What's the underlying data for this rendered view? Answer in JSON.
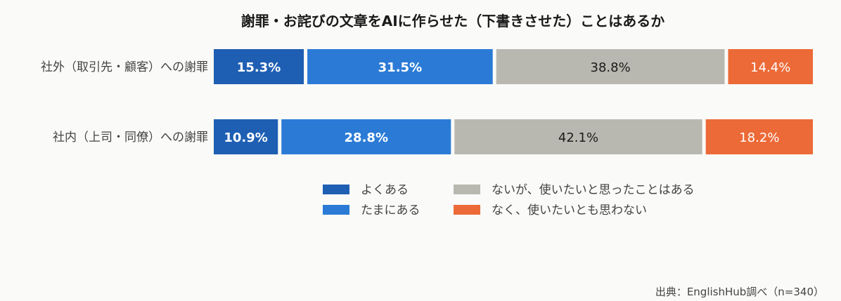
{
  "chart_data": {
    "type": "bar",
    "orientation": "horizontal",
    "stacked": "percent",
    "title": "謝罪・お詫びの文章をAIに作らせた（下書きさせた）ことはあるか",
    "categories": [
      "社外（取引先・顧客）への謝罪",
      "社内（上司・同僚）への謝罪"
    ],
    "series": [
      {
        "name": "よくある",
        "values": [
          15.3,
          10.9
        ],
        "color": "#1e5fb3",
        "label_color": "#ffffff",
        "label_bold": true
      },
      {
        "name": "たまにある",
        "values": [
          31.5,
          28.8
        ],
        "color": "#2b7bd6",
        "label_color": "#ffffff",
        "label_bold": true
      },
      {
        "name": "ないが、使いたいと思ったことはある",
        "values": [
          38.8,
          42.1
        ],
        "color": "#b9b8b0",
        "label_color": "#1a1a1a",
        "label_bold": false
      },
      {
        "name": "なく、使いたいとも思わない",
        "values": [
          14.4,
          18.2
        ],
        "color": "#ec6a37",
        "label_color": "#ffffff",
        "label_bold": false
      }
    ],
    "value_labels": [
      [
        "15.3%",
        "31.5%",
        "38.8%",
        "14.4%"
      ],
      [
        "10.9%",
        "28.8%",
        "42.1%",
        "18.2%"
      ]
    ],
    "legend_placement": "bottom",
    "grid": false,
    "source": "出典：EnglishHub調べ（n=340）"
  }
}
